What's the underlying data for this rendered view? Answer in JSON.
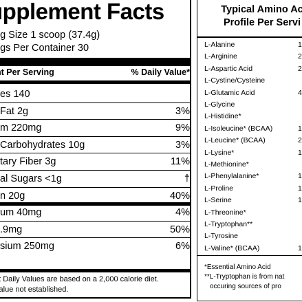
{
  "supplement_facts": {
    "title": "upplement Facts",
    "serving_size": "ng Size 1 scoop (37.4g)",
    "servings_per_container": "ngs Per Container 30",
    "header_left": "nt Per Serving",
    "header_right": "% Daily Value*",
    "rows": [
      {
        "name": "es 140",
        "value": ""
      },
      {
        "name": "Fat 2g",
        "value": "3%"
      },
      {
        "name": "m 220mg",
        "value": "9%"
      },
      {
        "name": "Carbohydrates 10g",
        "value": "3%"
      },
      {
        "name": "tary Fiber 3g",
        "value": "11%"
      },
      {
        "name": "al Sugars <1g",
        "value": "†"
      },
      {
        "name": "n 20g",
        "value": "40%"
      },
      {
        "name": "um 40mg",
        "value": "4%"
      },
      {
        "name": ".9mg",
        "value": "50%"
      },
      {
        "name": "sium 250mg",
        "value": "6%"
      }
    ],
    "footnote_1": "nt Daily Values are based on a 2,000 calorie diet.",
    "footnote_2": "Value not established."
  },
  "amino_profile": {
    "title_line_1": "Typical Amino Ac",
    "title_line_2": "Profile Per Servi",
    "rows": [
      {
        "name": "L-Alanine",
        "value": "1"
      },
      {
        "name": "L-Arginine",
        "value": "2"
      },
      {
        "name": "L-Aspartic Acid",
        "value": "2"
      },
      {
        "name": "L-Cystine/Cysteine",
        "value": ""
      },
      {
        "name": "L-Glutamic Acid",
        "value": "4"
      },
      {
        "name": "L-Glycine",
        "value": ""
      },
      {
        "name": "L-Histidine*",
        "value": ""
      },
      {
        "name": "L-Isoleucine* (BCAA)",
        "value": "1"
      },
      {
        "name": "L-Leucine* (BCAA)",
        "value": "2"
      },
      {
        "name": "L-Lysine*",
        "value": "1"
      },
      {
        "name": "L-Methionine*",
        "value": ""
      },
      {
        "name": "L-Phenylalanine*",
        "value": "1"
      },
      {
        "name": "L-Proline",
        "value": "1"
      },
      {
        "name": "L-Serine",
        "value": "1"
      },
      {
        "name": "L-Threonine*",
        "value": ""
      },
      {
        "name": "L-Tryptophan**",
        "value": ""
      },
      {
        "name": "L-Tyrosine",
        "value": ""
      },
      {
        "name": "L-Valine* (BCAA)",
        "value": "1"
      }
    ],
    "footnote_1": "*Essential Amino Acid",
    "footnote_2": "**L-Tryptophan is from nat",
    "footnote_3": "occuring sources of pro"
  }
}
